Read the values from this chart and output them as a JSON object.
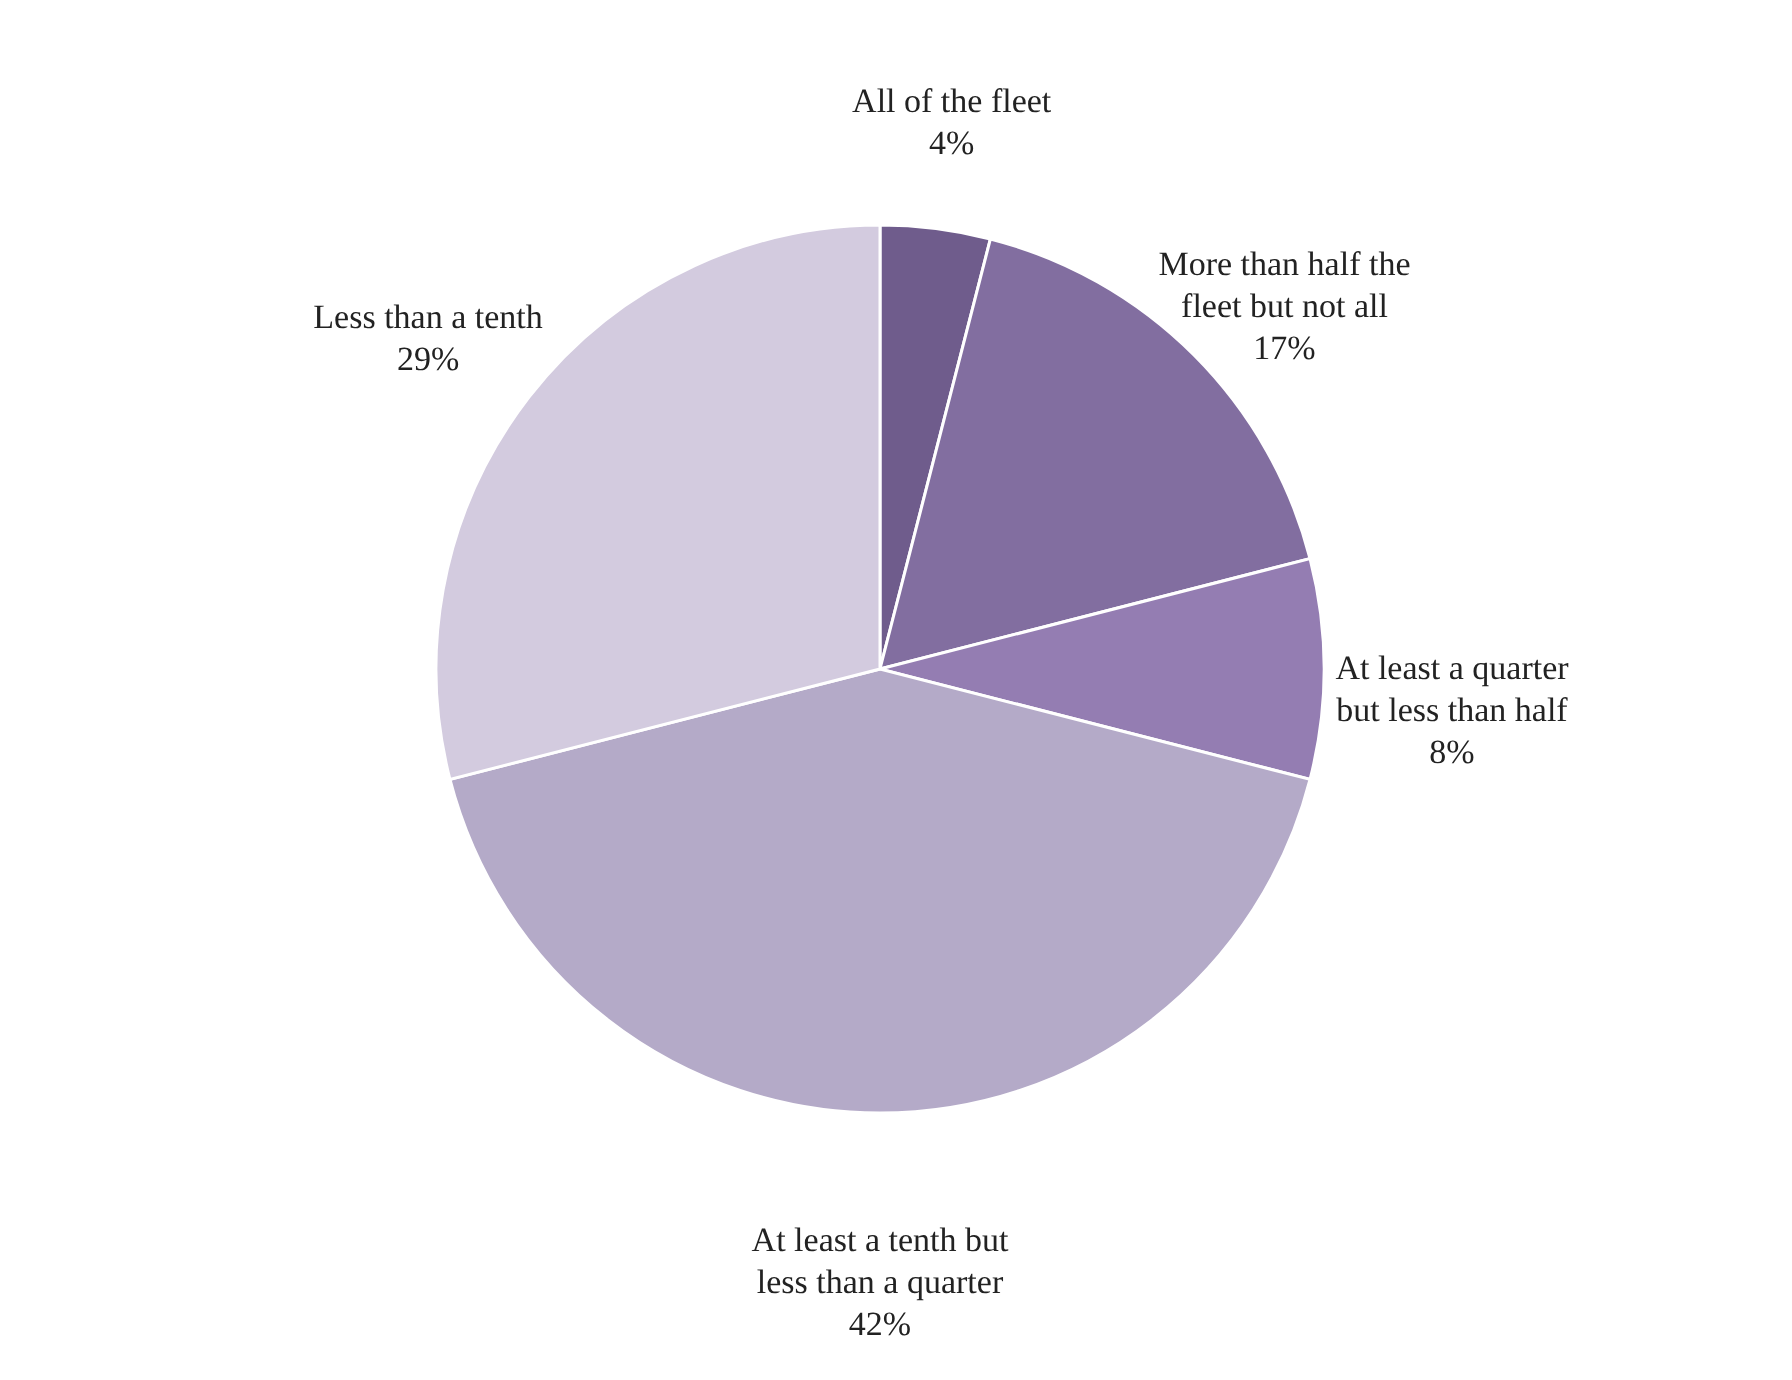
{
  "chart_data": {
    "type": "pie",
    "categories": [
      "All of the fleet",
      "More than half the fleet but not all",
      "At least a quarter but less than half",
      "At least a tenth but less than a quarter",
      "Less than a tenth"
    ],
    "values": [
      4,
      17,
      8,
      42,
      29
    ],
    "value_labels": [
      "4%",
      "17%",
      "8%",
      "42%",
      "29%"
    ],
    "colors": [
      "#6f5c8c",
      "#826ea0",
      "#947db2",
      "#b4aac8",
      "#d3cbdf"
    ],
    "legend": false
  }
}
